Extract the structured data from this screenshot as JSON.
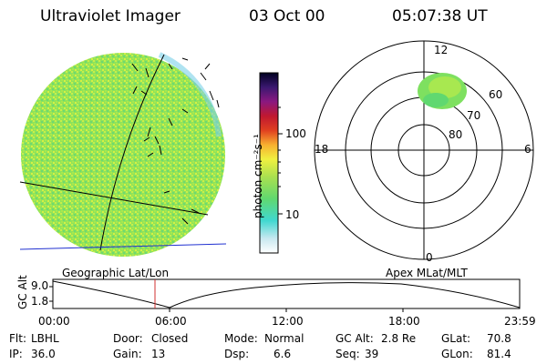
{
  "header": {
    "title": "Ultraviolet Imager",
    "date": "03 Oct 00",
    "time": "05:07:38 UT"
  },
  "colorbar": {
    "unit_label": "photon cm⁻²s⁻¹",
    "ticks": [
      "100",
      "10"
    ]
  },
  "polar_plot": {
    "top_label": "12",
    "left_label": "18",
    "right_label": "6",
    "bottom_label": "0",
    "ring_labels": [
      "60",
      "70",
      "80"
    ]
  },
  "panel_labels": {
    "left": "Geographic Lat/Lon",
    "right": "Apex MLat/MLT"
  },
  "altitude_panel": {
    "axis_title": "GC Alt",
    "y_ticks": [
      "9.0",
      "1.8"
    ],
    "x_ticks": [
      "00:00",
      "06:00",
      "12:00",
      "18:00",
      "23:59"
    ]
  },
  "footer": {
    "row1": [
      {
        "label": "Flt:",
        "value": "LBHL"
      },
      {
        "label": "Door:",
        "value": "Closed"
      },
      {
        "label": "Mode:",
        "value": "Normal"
      },
      {
        "label": "GC Alt:",
        "value": "2.8 Re"
      },
      {
        "label": "GLat:",
        "value": "70.8"
      }
    ],
    "row2": [
      {
        "label": "IP:",
        "value": "36.0"
      },
      {
        "label": "Gain:",
        "value": "13"
      },
      {
        "label": "Dsp:",
        "value": "6.6"
      },
      {
        "label": "Seq:",
        "value": "39"
      },
      {
        "label": "GLon:",
        "value": "81.4"
      }
    ]
  }
}
